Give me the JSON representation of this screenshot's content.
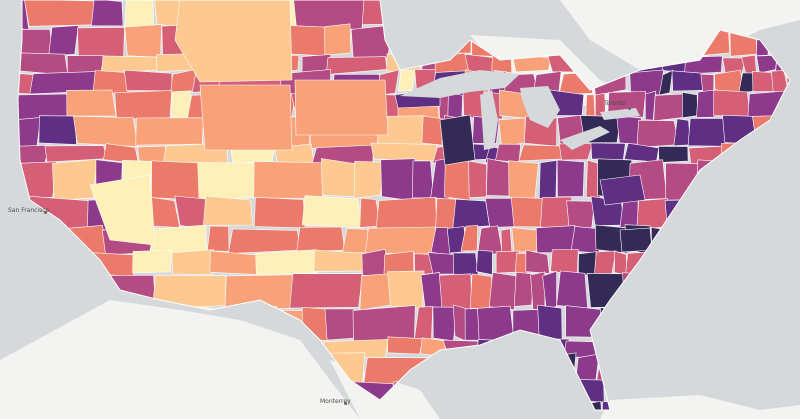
{
  "map": {
    "kind": "choropleth",
    "region": "Contiguous United States",
    "color_scale": [
      "#fef0b8",
      "#fdc991",
      "#f9a178",
      "#ec7a6a",
      "#d45f77",
      "#b44b82",
      "#8d3a8c",
      "#5f2f84",
      "#332a57"
    ],
    "land_background": "#f3f3f1",
    "water_color": "#d6d9dc",
    "boundary_color": "#ffffff"
  },
  "labels": {
    "san_francisco": "San Francisco",
    "toronto": "Toronto",
    "monterrey": "Monterrey"
  }
}
